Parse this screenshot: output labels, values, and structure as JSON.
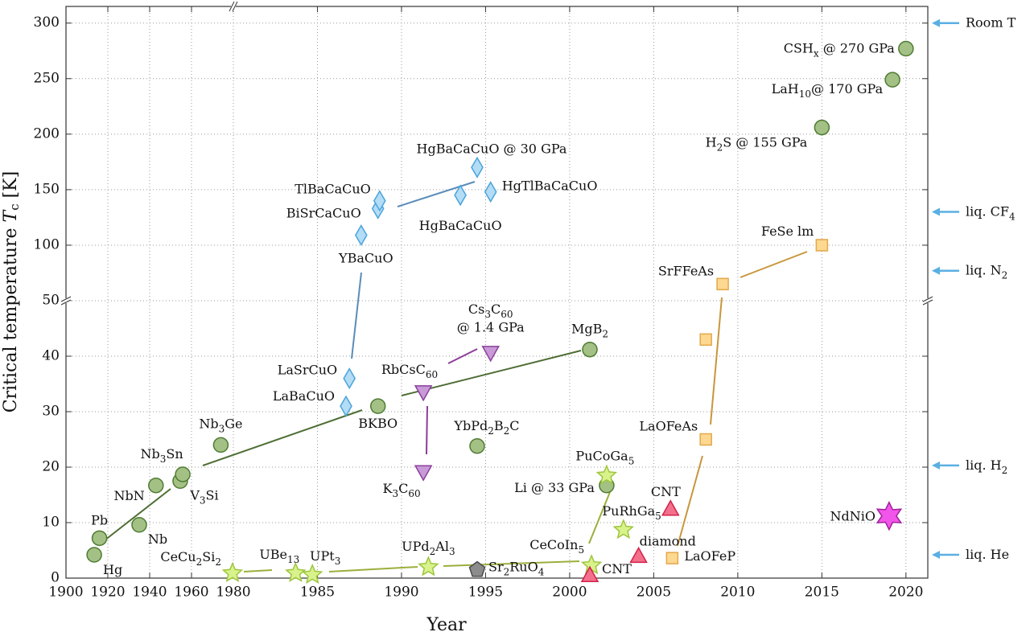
{
  "chart_data": {
    "type": "scatter",
    "xlabel": "Year",
    "ylabel": {
      "text": "Critical temperature ",
      "symbol": "T",
      "subscript": "c",
      "unit": " [K]"
    },
    "xlim": [
      1900,
      2021.3
    ],
    "xbreak": 1980,
    "ylim": [
      0,
      315
    ],
    "ybreak": 50,
    "xticks": [
      1900,
      1920,
      1940,
      1960,
      1980,
      1985,
      1990,
      1995,
      2000,
      2005,
      2010,
      2015,
      2020
    ],
    "yticks": [
      0,
      10,
      20,
      30,
      40,
      50,
      100,
      150,
      200,
      250,
      300
    ],
    "grid": true,
    "series": [
      {
        "marker": "circle",
        "color": "#a3c185",
        "edgecolor": "#4f7b33",
        "x": [
          1913.5,
          1916,
          1935,
          1943,
          1954.6,
          1955.8,
          1974,
          1988.6,
          1994.5,
          2002.2,
          2001.2,
          2015,
          2019.2,
          2020
        ],
        "values": [
          4.2,
          7.2,
          9.6,
          16.7,
          17.5,
          18.7,
          24,
          31,
          23.8,
          16.7,
          41.2,
          206,
          249,
          277
        ],
        "labels": [
          [
            "Hg"
          ],
          [
            "Pb"
          ],
          [
            "Nb"
          ],
          [
            "NbN"
          ],
          [
            "V",
            "3",
            "Si"
          ],
          [
            "Nb",
            "3",
            "Sn"
          ],
          [
            "Nb",
            "3",
            "Ge"
          ],
          [
            "BKBO"
          ],
          [
            "YbPd",
            "2",
            "B",
            "2",
            "C"
          ],
          [
            "Li @ 33 GPa"
          ],
          [
            "MgB",
            "2"
          ],
          [
            "H",
            "2",
            "S @ 155 GPa"
          ],
          [
            "LaH",
            "10",
            "@  170 GPa"
          ],
          [
            "CSH",
            "x",
            " @  270 GPa"
          ]
        ]
      },
      {
        "marker": "diamond",
        "color": "#b3dcf5",
        "edgecolor": "#4aa3dc",
        "x": [
          1986.7,
          1986.9,
          1987.6,
          1988.6,
          1988.7,
          1993.5,
          1994.5,
          1995.3
        ],
        "values": [
          31,
          36,
          109,
          133,
          140,
          145,
          170,
          148
        ],
        "labels": [
          [
            "LaBaCuO"
          ],
          [
            "LaSrCuO"
          ],
          [
            "YBaCuO"
          ],
          [
            "BiSrCaCuO"
          ],
          [
            "TlBaCaCuO"
          ],
          [
            "HgBaCaCuO"
          ],
          [
            "HgBaCaCuO @ 30 GPa"
          ],
          [
            "HgTlBaCaCuO"
          ]
        ]
      },
      {
        "marker": "triangle-down",
        "color": "#c89ad8",
        "edgecolor": "#8b3f9a",
        "x": [
          1991.3,
          1991.3,
          1995.3
        ],
        "values": [
          33.5,
          19.1,
          40.6
        ],
        "labels": [
          [
            "RbCsC",
            "60"
          ],
          [
            "K",
            "3",
            "C",
            "60"
          ],
          [
            "Cs",
            "3",
            "C",
            "60"
          ]
        ],
        "sublabels": [
          null,
          null,
          "@ 1.4 GPa"
        ]
      },
      {
        "marker": "star",
        "color": "#d8f28c",
        "edgecolor": "#9ec63e",
        "x": [
          1979.6,
          1983.7,
          1984.7,
          1991.6,
          2001.3,
          2002.2,
          2003.2
        ],
        "values": [
          0.9,
          0.9,
          0.6,
          2.0,
          2.3,
          18.5,
          8.7
        ],
        "labels": [
          [
            "CeCu",
            "2",
            "Si",
            "2"
          ],
          [
            "UBe",
            "13"
          ],
          [
            "UPt",
            "3"
          ],
          [
            "UPd",
            "2",
            "Al",
            "3"
          ],
          [
            "CeCoIn",
            "5"
          ],
          [
            "PuCoGa",
            "5"
          ],
          [
            "PuRhGa",
            "5"
          ]
        ]
      },
      {
        "marker": "pentagon",
        "color": "#8c8c8c",
        "edgecolor": "#4a4a4a",
        "x": [
          1994.5
        ],
        "values": [
          1.5
        ],
        "labels": [
          [
            "Sr",
            "2",
            "RuO",
            "4"
          ]
        ]
      },
      {
        "marker": "triangle-up",
        "color": "#f2708c",
        "edgecolor": "#d42048",
        "x": [
          2001.2,
          2004.1,
          2006
        ],
        "values": [
          0.55,
          4.0,
          12.5
        ],
        "labels": [
          [
            "CNT"
          ],
          [
            "diamond"
          ],
          [
            "CNT"
          ]
        ]
      },
      {
        "marker": "square",
        "color": "#fdd890",
        "edgecolor": "#e3a84c",
        "x": [
          2006.1,
          2008.1,
          2008.1,
          2009.1,
          2015
        ],
        "values": [
          3.6,
          25,
          43,
          65,
          100
        ],
        "labels": [
          [
            "LaOFeP"
          ],
          [
            "LaOFeAs"
          ],
          null,
          [
            "SrFFeAs"
          ],
          [
            "FeSe   lm"
          ]
        ]
      },
      {
        "marker": "hexagram",
        "color": "#f255ea",
        "edgecolor": "#a0209a",
        "x": [
          2019
        ],
        "values": [
          11.2
        ],
        "labels": [
          [
            "NdNiO"
          ]
        ]
      }
    ],
    "reference_lines": {
      "color": "#5aafe3",
      "items": [
        {
          "value": 300,
          "label": [
            "Room T"
          ]
        },
        {
          "value": 130,
          "label": [
            "liq. CF",
            "4"
          ]
        },
        {
          "value": 77,
          "label": [
            "liq. N",
            "2"
          ]
        },
        {
          "value": 20.3,
          "label": [
            "liq. H",
            "2"
          ]
        },
        {
          "value": 4.2,
          "label": [
            "liq. He"
          ]
        }
      ]
    }
  }
}
